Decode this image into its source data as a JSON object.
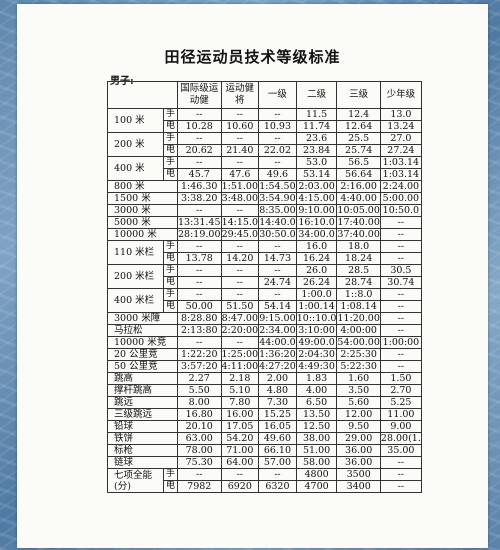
{
  "title": "田径运动员技术等级标准",
  "section_label": "男子:",
  "headers": [
    "国际级运动健",
    "运动健将",
    "一级",
    "二级",
    "三级",
    "少年级"
  ],
  "rows": [
    {
      "event": "100 米",
      "method": "手",
      "vals": [
        "--",
        "--",
        "--",
        "11.5",
        "12.4",
        "13.0"
      ],
      "span": 2
    },
    {
      "method": "电",
      "vals": [
        "10.28",
        "10.60",
        "10.93",
        "11.74",
        "12.64",
        "13.24"
      ]
    },
    {
      "event": "200 米",
      "method": "手",
      "vals": [
        "--",
        "--",
        "--",
        "23.6",
        "25.5",
        "27.0"
      ],
      "span": 2
    },
    {
      "method": "电",
      "vals": [
        "20.62",
        "21.40",
        "22.02",
        "23.84",
        "25.74",
        "27.24"
      ]
    },
    {
      "event": "400 米",
      "method": "手",
      "vals": [
        "--",
        "--",
        "--",
        "53.0",
        "56.5",
        "1:03.14"
      ],
      "span": 2
    },
    {
      "method": "电",
      "vals": [
        "45.7",
        "47.6",
        "49.6",
        "53.14",
        "56.64",
        "1:03.14"
      ]
    },
    {
      "event": "800 米",
      "vals": [
        "1:46.30",
        "1:51.00",
        "1:54.50",
        "2:03.00",
        "2:16.00",
        "2:24.00"
      ]
    },
    {
      "event": "1500 米",
      "vals": [
        "3:38.20",
        "3:48.00",
        "3:54.90",
        "4:15.00",
        "4:40.00",
        "5:00.00"
      ]
    },
    {
      "event": "3000 米",
      "vals": [
        "--",
        "--",
        "8:35.00",
        "9:10.00",
        "10:05.00",
        "10:50.0"
      ]
    },
    {
      "event": "5000 米",
      "vals": [
        "13:31.45",
        "14:15.0",
        "14:40.0",
        "16:10.0",
        "17:40.00",
        "--"
      ]
    },
    {
      "event": "10000 米",
      "vals": [
        "28:19.00",
        "29:45.0",
        "30:50.0",
        "34:00.0",
        "37:40.00",
        "--"
      ]
    },
    {
      "event": "110 米栏",
      "method": "手",
      "vals": [
        "--",
        "--",
        "--",
        "16.0",
        "18.0",
        "--"
      ],
      "span": 2
    },
    {
      "method": "电",
      "vals": [
        "13.78",
        "14.20",
        "14.73",
        "16.24",
        "18.24",
        "--"
      ]
    },
    {
      "event": "200 米栏",
      "method": "手",
      "vals": [
        "--",
        "--",
        "--",
        "26.0",
        "28.5",
        "30.5"
      ],
      "span": 2
    },
    {
      "method": "电",
      "vals": [
        "--",
        "--",
        "24.74",
        "26.24",
        "28.74",
        "30.74"
      ]
    },
    {
      "event": "400 米栏",
      "method": "手",
      "vals": [
        "--",
        "--",
        "--",
        "1:00.0",
        "1::8.0",
        "--"
      ],
      "span": 2
    },
    {
      "method": "电",
      "vals": [
        "50.00",
        "51.50",
        "54.14",
        "1:00.14",
        "1:08.14",
        "--"
      ]
    },
    {
      "event": "3000 米障",
      "vals": [
        "8:28.80",
        "8:47.00",
        "9:15.00",
        "10::10.0",
        "11:20.00",
        "--"
      ]
    },
    {
      "event": "马拉松",
      "vals": [
        "2:13:80",
        "2:20:00",
        "2:34.00",
        "3:10:00",
        "4:00:00",
        "--"
      ]
    },
    {
      "event": "10000 米竞",
      "vals": [
        "--",
        "--",
        "44:00.0",
        "49:00.0",
        "54:00.00",
        "1:00:00"
      ]
    },
    {
      "event": "20 公里竞",
      "vals": [
        "1:22:20",
        "1:25:00",
        "1:36:20",
        "2:04:30",
        "2:25:30",
        "--"
      ]
    },
    {
      "event": "50 公里竞",
      "vals": [
        "3:57:20",
        "4:11:00",
        "4:27:20",
        "4:49:30",
        "5:22:30",
        "--"
      ]
    },
    {
      "event": "跳高",
      "vals": [
        "2.27",
        "2.18",
        "2.00",
        "1.83",
        "1.60",
        "1.50"
      ]
    },
    {
      "event": "撑杆跳高",
      "vals": [
        "5.50",
        "5.10",
        "4.80",
        "4.00",
        "3.50",
        "2.70"
      ]
    },
    {
      "event": "跳远",
      "vals": [
        "8.00",
        "7.80",
        "7.30",
        "6.50",
        "5.60",
        "5.25"
      ]
    },
    {
      "event": "三级跳远",
      "vals": [
        "16.80",
        "16.00",
        "15.25",
        "13.50",
        "12.00",
        "11.00"
      ]
    },
    {
      "event": "铅球",
      "vals": [
        "20.10",
        "17.05",
        "16.05",
        "12.50",
        "9.50",
        "9.00"
      ]
    },
    {
      "event": "铁饼",
      "vals": [
        "63.00",
        "54.20",
        "49.60",
        "38.00",
        "29.00",
        "28.00(1."
      ]
    },
    {
      "event": "标枪",
      "vals": [
        "78.00",
        "71.00",
        "66.10",
        "51.00",
        "36.00",
        "35.00"
      ]
    },
    {
      "event": "链球",
      "vals": [
        "75.30",
        "64.00",
        "57.00",
        "58.00",
        "36.00",
        "--"
      ]
    },
    {
      "event": "七项全能",
      "event2": "(分)",
      "method": "手",
      "vals": [
        "--",
        "--",
        "--",
        "4800",
        "3500",
        "--"
      ],
      "span": 2
    },
    {
      "method": "电",
      "vals": [
        "7982",
        "6920",
        "6320",
        "4700",
        "3400",
        "--"
      ]
    }
  ]
}
